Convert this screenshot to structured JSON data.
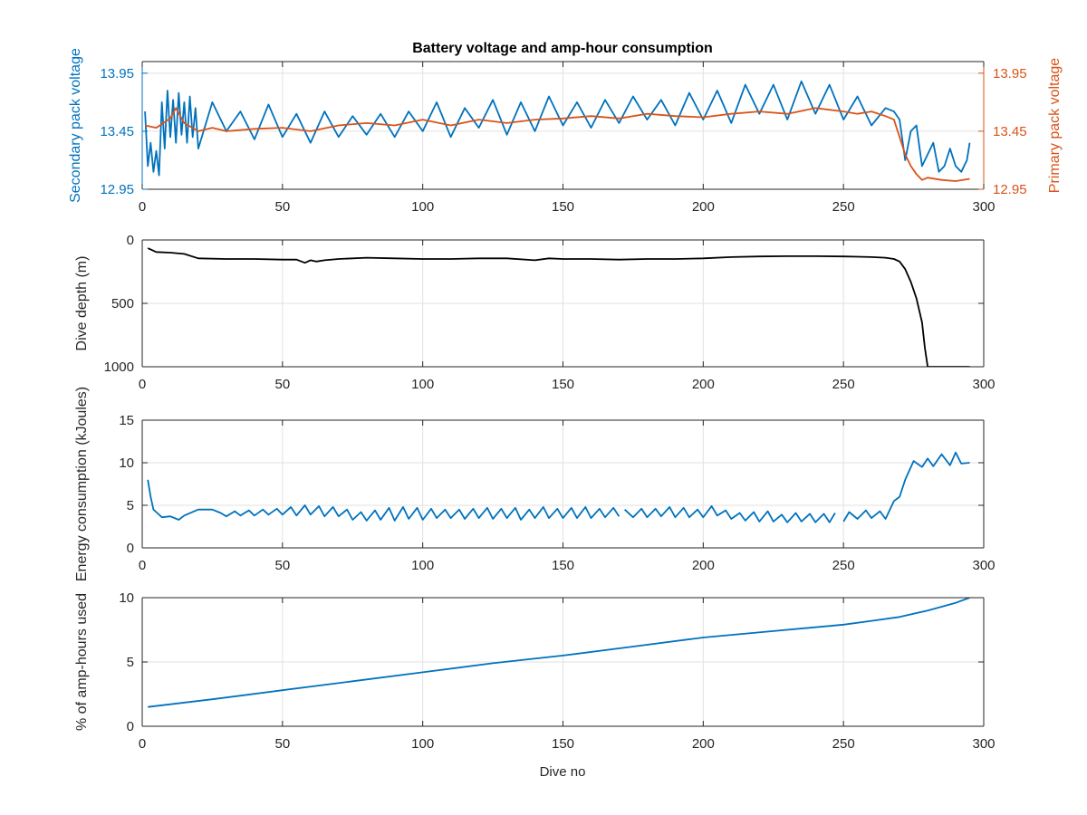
{
  "figure": {
    "title": "Battery voltage and amp-hour consumption",
    "xlabel_bottom": "Dive no",
    "colors": {
      "blue": "#0072BD",
      "orange": "#D95319",
      "black": "#000000",
      "grid": "#e1e1e1"
    }
  },
  "chart_data": [
    {
      "type": "line",
      "title": "Battery voltage and amp-hour consumption",
      "xlabel": "",
      "ylabel": "Secondary pack voltage",
      "ylabel_right": "Primary pack voltage",
      "xlim": [
        0,
        300
      ],
      "ylim": [
        12.95,
        14.05
      ],
      "ylim_right": [
        12.95,
        14.05
      ],
      "xticks": [
        0,
        50,
        100,
        150,
        200,
        250,
        300
      ],
      "yticks": [
        12.95,
        13.45,
        13.95
      ],
      "yticks_right": [
        12.95,
        13.45,
        13.95
      ],
      "grid": true,
      "series": [
        {
          "axis": "left",
          "color": "#0072BD",
          "x": [
            1,
            2,
            3,
            4,
            5,
            6,
            7,
            8,
            9,
            10,
            11,
            12,
            13,
            14,
            15,
            16,
            17,
            18,
            19,
            20,
            25,
            30,
            35,
            40,
            45,
            50,
            55,
            60,
            65,
            70,
            75,
            80,
            85,
            90,
            95,
            100,
            105,
            110,
            115,
            120,
            125,
            130,
            135,
            140,
            145,
            150,
            155,
            160,
            165,
            170,
            175,
            180,
            185,
            190,
            195,
            200,
            205,
            210,
            215,
            220,
            225,
            230,
            235,
            240,
            245,
            250,
            255,
            260,
            265,
            268,
            270,
            272,
            274,
            276,
            278,
            280,
            282,
            284,
            286,
            288,
            290,
            292,
            294,
            295
          ],
          "y": [
            13.62,
            13.15,
            13.35,
            13.1,
            13.28,
            13.07,
            13.7,
            13.3,
            13.8,
            13.4,
            13.72,
            13.35,
            13.78,
            13.42,
            13.7,
            13.35,
            13.75,
            13.4,
            13.65,
            13.3,
            13.7,
            13.45,
            13.62,
            13.38,
            13.68,
            13.4,
            13.6,
            13.35,
            13.62,
            13.4,
            13.58,
            13.42,
            13.6,
            13.4,
            13.62,
            13.45,
            13.7,
            13.4,
            13.65,
            13.48,
            13.72,
            13.42,
            13.7,
            13.45,
            13.75,
            13.5,
            13.7,
            13.48,
            13.72,
            13.52,
            13.75,
            13.55,
            13.72,
            13.5,
            13.78,
            13.55,
            13.8,
            13.52,
            13.85,
            13.6,
            13.85,
            13.55,
            13.88,
            13.6,
            13.85,
            13.55,
            13.75,
            13.5,
            13.65,
            13.62,
            13.55,
            13.2,
            13.45,
            13.5,
            13.15,
            13.25,
            13.35,
            13.1,
            13.15,
            13.3,
            13.15,
            13.1,
            13.2,
            13.35
          ]
        },
        {
          "axis": "right",
          "color": "#D95319",
          "x": [
            1,
            5,
            10,
            12,
            15,
            20,
            25,
            30,
            40,
            50,
            60,
            70,
            80,
            90,
            100,
            110,
            120,
            130,
            140,
            150,
            160,
            170,
            180,
            190,
            200,
            210,
            220,
            230,
            240,
            250,
            255,
            260,
            265,
            268,
            270,
            272,
            274,
            276,
            278,
            280,
            285,
            290,
            295
          ],
          "y": [
            13.5,
            13.48,
            13.56,
            13.65,
            13.52,
            13.45,
            13.48,
            13.45,
            13.47,
            13.48,
            13.45,
            13.5,
            13.52,
            13.5,
            13.55,
            13.5,
            13.55,
            13.52,
            13.55,
            13.56,
            13.58,
            13.56,
            13.6,
            13.58,
            13.57,
            13.6,
            13.62,
            13.6,
            13.65,
            13.62,
            13.6,
            13.62,
            13.58,
            13.55,
            13.4,
            13.25,
            13.15,
            13.08,
            13.03,
            13.05,
            13.03,
            13.02,
            13.04
          ]
        }
      ]
    },
    {
      "type": "line",
      "xlabel": "",
      "ylabel": "Dive depth (m)",
      "y_reversed": true,
      "xlim": [
        0,
        300
      ],
      "ylim": [
        0,
        1000
      ],
      "xticks": [
        0,
        50,
        100,
        150,
        200,
        250,
        300
      ],
      "yticks": [
        0,
        500,
        1000
      ],
      "grid": true,
      "series": [
        {
          "color": "#000000",
          "x": [
            2,
            5,
            10,
            15,
            20,
            30,
            40,
            50,
            55,
            58,
            60,
            62,
            65,
            70,
            80,
            90,
            100,
            110,
            120,
            130,
            140,
            145,
            150,
            160,
            170,
            180,
            190,
            200,
            210,
            220,
            230,
            240,
            250,
            255,
            260,
            265,
            268,
            270,
            272,
            274,
            276,
            278,
            279,
            280,
            285,
            290,
            295
          ],
          "y": [
            65,
            95,
            100,
            110,
            145,
            150,
            150,
            155,
            155,
            180,
            160,
            170,
            160,
            150,
            140,
            145,
            150,
            150,
            145,
            145,
            160,
            145,
            150,
            150,
            155,
            150,
            150,
            145,
            135,
            130,
            128,
            128,
            130,
            132,
            135,
            140,
            150,
            170,
            230,
            330,
            460,
            650,
            850,
            1000,
            1000,
            1000,
            1000
          ]
        }
      ]
    },
    {
      "type": "line",
      "xlabel": "",
      "ylabel": "Energy consumption (kJoules)",
      "xlim": [
        0,
        300
      ],
      "ylim": [
        0,
        15
      ],
      "xticks": [
        0,
        50,
        100,
        150,
        200,
        250,
        300
      ],
      "yticks": [
        0,
        5,
        10,
        15
      ],
      "grid": true,
      "series": [
        {
          "color": "#0072BD",
          "x": [
            2,
            3,
            4,
            5,
            7,
            10,
            13,
            15,
            20,
            25,
            28,
            30,
            33,
            35,
            38,
            40,
            43,
            45,
            48,
            50,
            53,
            55,
            58,
            60,
            63,
            65,
            68,
            70,
            73,
            75,
            78,
            80,
            83,
            85,
            88,
            90,
            93,
            95,
            98,
            100,
            103,
            105,
            108,
            110,
            113,
            115,
            118,
            120,
            123,
            125,
            128,
            130,
            133,
            135,
            138,
            140,
            143,
            145,
            148,
            150,
            153,
            155,
            158,
            160,
            163,
            165,
            168,
            170,
            null,
            172,
            175,
            178,
            180,
            183,
            185,
            188,
            190,
            193,
            195,
            198,
            200,
            203,
            205,
            208,
            210,
            213,
            215,
            218,
            220,
            223,
            225,
            228,
            230,
            233,
            235,
            238,
            240,
            243,
            245,
            247,
            null,
            250,
            252,
            255,
            258,
            260,
            263,
            265,
            268,
            270,
            272,
            275,
            278,
            280,
            282,
            285,
            288,
            290,
            292,
            295
          ],
          "y": [
            8,
            6,
            4.5,
            4.2,
            3.6,
            3.7,
            3.3,
            3.8,
            4.5,
            4.5,
            4.1,
            3.7,
            4.3,
            3.8,
            4.4,
            3.8,
            4.5,
            3.9,
            4.6,
            3.9,
            4.8,
            3.8,
            5,
            3.9,
            4.9,
            3.7,
            4.8,
            3.7,
            4.5,
            3.3,
            4.2,
            3.2,
            4.4,
            3.3,
            4.7,
            3.2,
            4.8,
            3.4,
            4.7,
            3.3,
            4.6,
            3.5,
            4.5,
            3.5,
            4.5,
            3.4,
            4.6,
            3.5,
            4.7,
            3.4,
            4.6,
            3.5,
            4.7,
            3.3,
            4.5,
            3.5,
            4.8,
            3.5,
            4.6,
            3.5,
            4.7,
            3.5,
            4.8,
            3.5,
            4.6,
            3.6,
            4.7,
            3.7,
            null,
            4.5,
            3.6,
            4.6,
            3.6,
            4.6,
            3.7,
            4.8,
            3.6,
            4.7,
            3.6,
            4.5,
            3.6,
            4.9,
            3.8,
            4.4,
            3.4,
            4.1,
            3.2,
            4.2,
            3.1,
            4.3,
            3.1,
            3.9,
            3.0,
            4.1,
            3.1,
            4.0,
            3.0,
            4.0,
            3.0,
            4.1,
            null,
            3.1,
            4.2,
            3.4,
            4.4,
            3.5,
            4.3,
            3.4,
            5.5,
            6,
            8,
            10.2,
            9.5,
            10.5,
            9.6,
            11,
            9.7,
            11.2,
            9.9,
            10
          ]
        }
      ]
    },
    {
      "type": "line",
      "xlabel": "Dive no",
      "ylabel": "% of amp-hours used",
      "xlim": [
        0,
        300
      ],
      "ylim": [
        0,
        10
      ],
      "xticks": [
        0,
        50,
        100,
        150,
        200,
        250,
        300
      ],
      "yticks": [
        0,
        5,
        10
      ],
      "grid": true,
      "series": [
        {
          "color": "#0072BD",
          "x": [
            2,
            25,
            50,
            75,
            100,
            125,
            150,
            175,
            200,
            225,
            250,
            260,
            270,
            280,
            290,
            295
          ],
          "y": [
            1.5,
            2.1,
            2.8,
            3.5,
            4.2,
            4.9,
            5.5,
            6.2,
            6.9,
            7.4,
            7.9,
            8.2,
            8.5,
            9.0,
            9.6,
            10
          ]
        }
      ]
    }
  ]
}
